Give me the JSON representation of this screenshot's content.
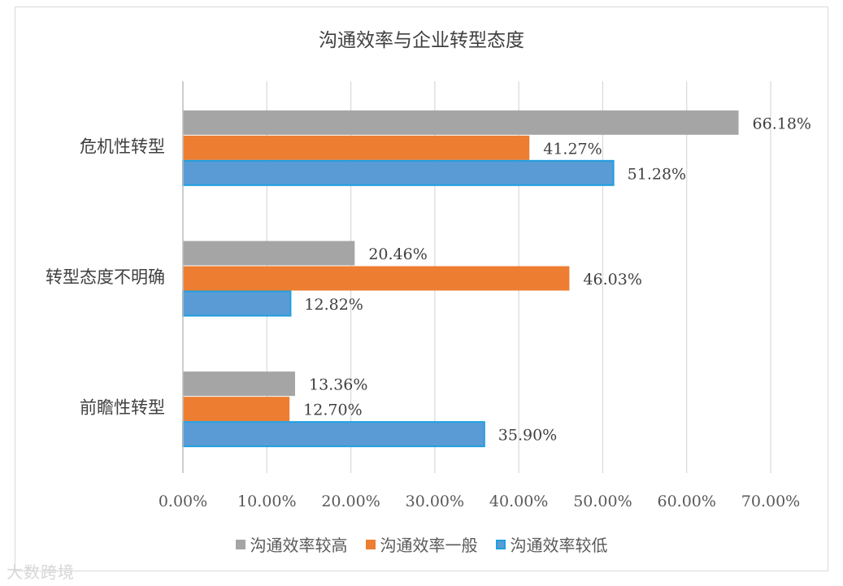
{
  "chart_data": {
    "type": "bar",
    "orientation": "horizontal",
    "title": "沟通效率与企业转型态度",
    "categories": [
      "危机性转型",
      "转型态度不明确",
      "前瞻性转型"
    ],
    "series": [
      {
        "name": "沟通效率较高",
        "color": "#a5a5a5",
        "values": [
          66.18,
          20.46,
          13.36
        ],
        "labels": [
          "66.18%",
          "20.46%",
          "13.36%"
        ]
      },
      {
        "name": "沟通效率一般",
        "color": "#ed7d31",
        "values": [
          41.27,
          46.03,
          12.7
        ],
        "labels": [
          "41.27%",
          "46.03%",
          "12.70%"
        ]
      },
      {
        "name": "沟通效率较低",
        "color": "#5b9bd5",
        "values": [
          51.28,
          12.82,
          35.9
        ],
        "labels": [
          "51.28%",
          "12.82%",
          "35.90%"
        ]
      }
    ],
    "xlim": [
      0,
      70
    ],
    "xticks": [
      "0.00%",
      "10.00%",
      "20.00%",
      "30.00%",
      "40.00%",
      "50.00%",
      "60.00%",
      "70.00%"
    ],
    "grid": true,
    "legend_position": "bottom"
  },
  "watermark": "大数跨境",
  "colors": {
    "low_series_border": "#1f9fe0"
  }
}
